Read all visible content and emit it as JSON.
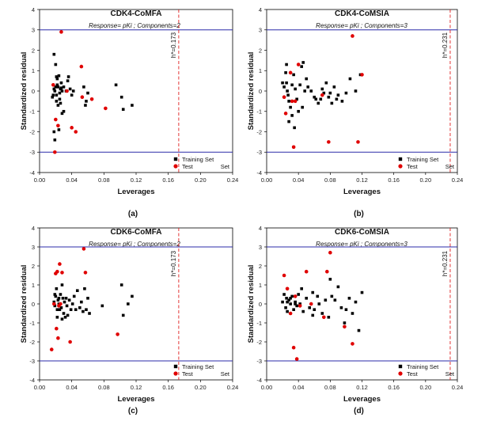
{
  "chart_data": [
    {
      "type": "scatter",
      "panel_label": "(a)",
      "title": "CDK4-CoMFA",
      "subtitle": "Response=  pKi  ; Components=2",
      "xlabel": "Leverages",
      "ylabel": "Standardized  residual",
      "xlim": [
        0.0,
        0.24
      ],
      "ylim": [
        -4,
        4
      ],
      "xticks": [
        "0.00",
        "0.04",
        "0.08",
        "0.12",
        "0.16",
        "0.20",
        "0.24"
      ],
      "yticks": [
        "-4",
        "-3",
        "-2",
        "-1",
        "0",
        "1",
        "2",
        "3",
        "4"
      ],
      "threshold_lines": [
        3,
        -3
      ],
      "h_star": 0.173,
      "h_star_label": "h*=0.173",
      "legend": {
        "position": "bottom-right",
        "train_label": "Training Set",
        "test_label": "Test",
        "test_suffix": "Set"
      },
      "series": [
        {
          "name": "Training Set",
          "marker": "square",
          "color": "#000000",
          "points": [
            [
              0.018,
              1.8
            ],
            [
              0.02,
              1.3
            ],
            [
              0.021,
              0.7
            ],
            [
              0.022,
              0.3
            ],
            [
              0.023,
              0.2
            ],
            [
              0.024,
              0.75
            ],
            [
              0.025,
              -0.1
            ],
            [
              0.026,
              0.1
            ],
            [
              0.027,
              0.15
            ],
            [
              0.028,
              0.0
            ],
            [
              0.022,
              0.6
            ],
            [
              0.019,
              0.0
            ],
            [
              0.017,
              -0.2
            ],
            [
              0.016,
              -0.3
            ],
            [
              0.021,
              -0.5
            ],
            [
              0.023,
              -0.7
            ],
            [
              0.025,
              -0.4
            ],
            [
              0.027,
              0.4
            ],
            [
              0.03,
              0.2
            ],
            [
              0.033,
              0.0
            ],
            [
              0.035,
              0.5
            ],
            [
              0.038,
              0.1
            ],
            [
              0.04,
              -0.2
            ],
            [
              0.042,
              0.0
            ],
            [
              0.03,
              -1.0
            ],
            [
              0.028,
              -1.1
            ],
            [
              0.024,
              -1.9
            ],
            [
              0.019,
              -2.4
            ],
            [
              0.02,
              0.2
            ],
            [
              0.018,
              0.1
            ],
            [
              0.021,
              -0.2
            ],
            [
              0.055,
              0.2
            ],
            [
              0.057,
              -0.7
            ],
            [
              0.058,
              -0.5
            ],
            [
              0.06,
              -0.1
            ],
            [
              0.036,
              0.7
            ],
            [
              0.095,
              0.3
            ],
            [
              0.102,
              -0.3
            ],
            [
              0.104,
              -0.9
            ],
            [
              0.115,
              -0.7
            ],
            [
              0.018,
              -2.0
            ],
            [
              0.026,
              -0.6
            ]
          ]
        },
        {
          "name": "Test Set",
          "marker": "circle",
          "color": "#e00000",
          "points": [
            [
              0.027,
              2.9
            ],
            [
              0.017,
              0.3
            ],
            [
              0.02,
              -1.4
            ],
            [
              0.023,
              -1.7
            ],
            [
              0.019,
              -3.0
            ],
            [
              0.04,
              -1.8
            ],
            [
              0.045,
              -2.0
            ],
            [
              0.052,
              1.2
            ],
            [
              0.053,
              -0.3
            ],
            [
              0.065,
              -0.4
            ],
            [
              0.082,
              -0.85
            ],
            [
              0.034,
              0.0
            ]
          ]
        }
      ]
    },
    {
      "type": "scatter",
      "panel_label": "(b)",
      "title": "CDK4-CoMSIA",
      "subtitle": "Response=  pKi  ; Components=3",
      "xlabel": "Leverages",
      "ylabel": "Standardized  residual",
      "xlim": [
        0.0,
        0.24
      ],
      "ylim": [
        -4,
        4
      ],
      "xticks": [
        "0.00",
        "0.04",
        "0.08",
        "0.12",
        "0.16",
        "0.20",
        "0.24"
      ],
      "yticks": [
        "-4",
        "-3",
        "-2",
        "-1",
        "0",
        "1",
        "2",
        "3",
        "4"
      ],
      "threshold_lines": [
        3,
        -3
      ],
      "h_star": 0.231,
      "h_star_label": "h*=0.231",
      "legend": {
        "position": "bottom-right",
        "train_label": "Training Set",
        "test_label": "Test",
        "test_suffix": "Set"
      },
      "series": [
        {
          "name": "Training Set",
          "marker": "square",
          "color": "#000000",
          "points": [
            [
              0.02,
              0.4
            ],
            [
              0.022,
              0.2
            ],
            [
              0.024,
              0.9
            ],
            [
              0.025,
              1.3
            ],
            [
              0.026,
              0.0
            ],
            [
              0.027,
              -0.2
            ],
            [
              0.028,
              -0.5
            ],
            [
              0.03,
              -0.8
            ],
            [
              0.032,
              0.3
            ],
            [
              0.034,
              0.8
            ],
            [
              0.036,
              0.1
            ],
            [
              0.038,
              -0.4
            ],
            [
              0.04,
              -1.0
            ],
            [
              0.042,
              0.3
            ],
            [
              0.044,
              1.2
            ],
            [
              0.046,
              1.4
            ],
            [
              0.048,
              0.0
            ],
            [
              0.05,
              0.6
            ],
            [
              0.052,
              0.2
            ],
            [
              0.056,
              0.0
            ],
            [
              0.06,
              -0.3
            ],
            [
              0.062,
              -0.4
            ],
            [
              0.065,
              -0.6
            ],
            [
              0.068,
              -0.4
            ],
            [
              0.07,
              0.1
            ],
            [
              0.072,
              -0.1
            ],
            [
              0.075,
              0.4
            ],
            [
              0.078,
              -0.3
            ],
            [
              0.08,
              -0.1
            ],
            [
              0.082,
              -0.6
            ],
            [
              0.085,
              0.2
            ],
            [
              0.088,
              -0.4
            ],
            [
              0.09,
              -0.2
            ],
            [
              0.095,
              -0.5
            ],
            [
              0.1,
              -0.1
            ],
            [
              0.105,
              0.6
            ],
            [
              0.112,
              0.0
            ],
            [
              0.118,
              0.8
            ],
            [
              0.028,
              -1.5
            ],
            [
              0.032,
              -1.2
            ],
            [
              0.035,
              -1.8
            ],
            [
              0.045,
              -0.8
            ],
            [
              0.025,
              0.4
            ]
          ]
        },
        {
          "name": "Test Set",
          "marker": "circle",
          "color": "#e00000",
          "points": [
            [
              0.022,
              -0.3
            ],
            [
              0.024,
              -1.1
            ],
            [
              0.03,
              0.9
            ],
            [
              0.032,
              -0.5
            ],
            [
              0.036,
              -0.5
            ],
            [
              0.034,
              -2.75
            ],
            [
              0.04,
              1.3
            ],
            [
              0.07,
              -0.2
            ],
            [
              0.078,
              -2.5
            ],
            [
              0.108,
              2.7
            ],
            [
              0.115,
              -2.5
            ],
            [
              0.12,
              0.8
            ]
          ]
        }
      ]
    },
    {
      "type": "scatter",
      "panel_label": "(c)",
      "title": "CDK6-CoMFA",
      "subtitle": "Response=  pKi  ; Components=2",
      "xlabel": "Leverages",
      "ylabel": "Standardized  residual",
      "xlim": [
        0.0,
        0.24
      ],
      "ylim": [
        -4,
        4
      ],
      "xticks": [
        "0.00",
        "0.04",
        "0.08",
        "0.12",
        "0.16",
        "0.20",
        "0.24"
      ],
      "yticks": [
        "-4",
        "-3",
        "-2",
        "-1",
        "0",
        "1",
        "2",
        "3",
        "4"
      ],
      "threshold_lines": [
        3,
        -3
      ],
      "h_star": 0.173,
      "h_star_label": "h*=0.173",
      "legend": {
        "position": "bottom-right",
        "train_label": "Training Set",
        "test_label": "Test",
        "test_suffix": "Set"
      },
      "series": [
        {
          "name": "Training Set",
          "marker": "square",
          "color": "#000000",
          "points": [
            [
              0.018,
              0.1
            ],
            [
              0.019,
              -0.1
            ],
            [
              0.02,
              0.4
            ],
            [
              0.021,
              0.8
            ],
            [
              0.022,
              -0.7
            ],
            [
              0.023,
              0.2
            ],
            [
              0.024,
              0.0
            ],
            [
              0.025,
              -0.3
            ],
            [
              0.026,
              0.5
            ],
            [
              0.027,
              -0.2
            ],
            [
              0.028,
              1.0
            ],
            [
              0.029,
              0.3
            ],
            [
              0.03,
              -0.5
            ],
            [
              0.031,
              0.1
            ],
            [
              0.032,
              -0.7
            ],
            [
              0.033,
              0.3
            ],
            [
              0.034,
              -0.1
            ],
            [
              0.035,
              -0.6
            ],
            [
              0.037,
              0.2
            ],
            [
              0.039,
              -0.3
            ],
            [
              0.041,
              0.0
            ],
            [
              0.043,
              0.4
            ],
            [
              0.045,
              -0.3
            ],
            [
              0.047,
              0.7
            ],
            [
              0.05,
              -0.2
            ],
            [
              0.052,
              0.1
            ],
            [
              0.054,
              -0.4
            ],
            [
              0.056,
              0.8
            ],
            [
              0.058,
              -0.3
            ],
            [
              0.06,
              0.3
            ],
            [
              0.062,
              -0.5
            ],
            [
              0.078,
              -0.1
            ],
            [
              0.102,
              1.0
            ],
            [
              0.104,
              -0.6
            ],
            [
              0.11,
              0.0
            ],
            [
              0.115,
              0.4
            ],
            [
              0.019,
              0.5
            ],
            [
              0.022,
              -0.3
            ],
            [
              0.028,
              -0.8
            ],
            [
              0.024,
              0.3
            ]
          ]
        },
        {
          "name": "Test Set",
          "marker": "circle",
          "color": "#e00000",
          "points": [
            [
              0.015,
              -2.4
            ],
            [
              0.018,
              0.0
            ],
            [
              0.02,
              1.6
            ],
            [
              0.022,
              1.7
            ],
            [
              0.021,
              -1.3
            ],
            [
              0.023,
              -1.8
            ],
            [
              0.025,
              2.1
            ],
            [
              0.026,
              0.0
            ],
            [
              0.028,
              1.65
            ],
            [
              0.038,
              -2.0
            ],
            [
              0.055,
              2.9
            ],
            [
              0.057,
              1.65
            ],
            [
              0.097,
              -1.6
            ],
            [
              0.024,
              -0.1
            ]
          ]
        }
      ]
    },
    {
      "type": "scatter",
      "panel_label": "(d)",
      "title": "CDK6-CoMSIA",
      "subtitle": "Response=  pKi  ; Components=3",
      "xlabel": "Leverages",
      "ylabel": "Standardized  residual",
      "xlim": [
        0.0,
        0.24
      ],
      "ylim": [
        -4,
        4
      ],
      "xticks": [
        "0.00",
        "0.04",
        "0.08",
        "0.12",
        "0.16",
        "0.20",
        "0.24"
      ],
      "yticks": [
        "-4",
        "-3",
        "-2",
        "-1",
        "0",
        "1",
        "2",
        "3",
        "4"
      ],
      "threshold_lines": [
        3,
        -3
      ],
      "h_star": 0.231,
      "h_star_label": "h*=0.231",
      "legend": {
        "position": "bottom-right",
        "train_label": "Training Set",
        "test_label": "Test",
        "test_suffix": "Set"
      },
      "series": [
        {
          "name": "Training Set",
          "marker": "square",
          "color": "#000000",
          "points": [
            [
              0.02,
              0.1
            ],
            [
              0.022,
              0.5
            ],
            [
              0.024,
              -0.2
            ],
            [
              0.025,
              0.3
            ],
            [
              0.026,
              -0.4
            ],
            [
              0.028,
              0.2
            ],
            [
              0.03,
              0.0
            ],
            [
              0.032,
              0.4
            ],
            [
              0.034,
              -0.3
            ],
            [
              0.036,
              0.1
            ],
            [
              0.038,
              -0.1
            ],
            [
              0.04,
              0.5
            ],
            [
              0.042,
              0.0
            ],
            [
              0.044,
              0.8
            ],
            [
              0.046,
              -0.4
            ],
            [
              0.05,
              0.3
            ],
            [
              0.054,
              -0.2
            ],
            [
              0.058,
              0.6
            ],
            [
              0.06,
              -0.3
            ],
            [
              0.064,
              0.4
            ],
            [
              0.066,
              0.0
            ],
            [
              0.07,
              -0.5
            ],
            [
              0.074,
              0.2
            ],
            [
              0.078,
              -0.7
            ],
            [
              0.08,
              1.3
            ],
            [
              0.082,
              0.4
            ],
            [
              0.086,
              0.2
            ],
            [
              0.09,
              0.9
            ],
            [
              0.094,
              -0.2
            ],
            [
              0.098,
              -1.0
            ],
            [
              0.1,
              -0.3
            ],
            [
              0.104,
              0.3
            ],
            [
              0.108,
              -0.5
            ],
            [
              0.112,
              0.1
            ],
            [
              0.116,
              -1.4
            ],
            [
              0.12,
              0.6
            ],
            [
              0.03,
              0.3
            ],
            [
              0.026,
              0.1
            ],
            [
              0.036,
              0.0
            ],
            [
              0.058,
              -0.6
            ]
          ]
        },
        {
          "name": "Test Set",
          "marker": "circle",
          "color": "#e00000",
          "points": [
            [
              0.022,
              1.5
            ],
            [
              0.026,
              0.8
            ],
            [
              0.03,
              -0.5
            ],
            [
              0.034,
              -2.3
            ],
            [
              0.036,
              0.4
            ],
            [
              0.038,
              -2.9
            ],
            [
              0.042,
              -0.1
            ],
            [
              0.05,
              1.7
            ],
            [
              0.056,
              0.0
            ],
            [
              0.072,
              -0.7
            ],
            [
              0.076,
              1.7
            ],
            [
              0.08,
              2.7
            ],
            [
              0.098,
              -1.2
            ],
            [
              0.108,
              -2.1
            ]
          ]
        }
      ]
    }
  ]
}
